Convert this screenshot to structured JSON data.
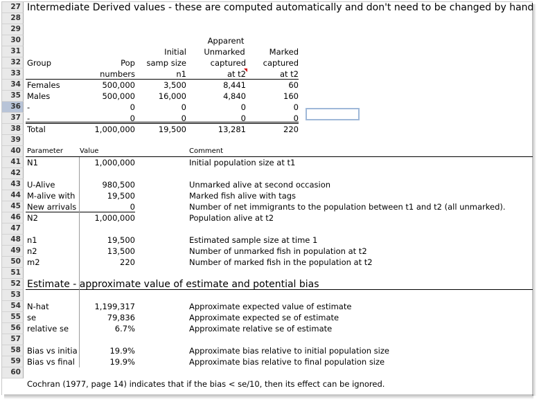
{
  "row_numbers": [
    "27",
    "28",
    "29",
    "30",
    "31",
    "32",
    "33",
    "34",
    "35",
    "36",
    "37",
    "38",
    "39",
    "40",
    "41",
    "42",
    "43",
    "44",
    "45",
    "46",
    "47",
    "48",
    "49",
    "50",
    "51",
    "52",
    "53",
    "54",
    "55",
    "56",
    "57",
    "58",
    "59",
    "60"
  ],
  "title": "Intermediate Derived values - these are computed automatically and don't need to be changed by hand.",
  "table_headers": {
    "r29": {
      "apparent": "Apparent"
    },
    "r30": {
      "initial": "Initial",
      "unmarked": "Unmarked",
      "marked": "Marked"
    },
    "r31": {
      "group": "Group",
      "pop": "Pop",
      "samp": "samp size",
      "captured1": "captured",
      "captured2": "captured"
    },
    "r32": {
      "numbers": "numbers",
      "n1": "n1",
      "at_t2_a": "at t2",
      "at_t2_b": "at t2"
    }
  },
  "table_rows": [
    {
      "group": "Females",
      "pop": "500,000",
      "samp": "3,500",
      "unmarked": "8,441",
      "marked": "60"
    },
    {
      "group": "Males",
      "pop": "500,000",
      "samp": "16,000",
      "unmarked": "4,840",
      "marked": "160"
    },
    {
      "group": "-",
      "pop": "0",
      "samp": "0",
      "unmarked": "0",
      "marked": "0"
    },
    {
      "group": "-",
      "pop": "0",
      "samp": "0",
      "unmarked": "0",
      "marked": "0"
    }
  ],
  "total": {
    "label": "Total",
    "pop": "1,000,000",
    "samp": "19,500",
    "unmarked": "13,281",
    "marked": "220"
  },
  "params_header": {
    "parameter": "Parameter",
    "value": "Value",
    "comment": "Comment"
  },
  "params": {
    "N1": {
      "name": "N1",
      "value": "1,000,000",
      "comment": "Initial population size at t1"
    },
    "UAlive": {
      "name": "U-Alive",
      "value": "980,500",
      "comment": "Unmarked alive at second occasion"
    },
    "MAlive": {
      "name": "M-alive with",
      "value": "19,500",
      "comment": "Marked fish alive with tags"
    },
    "NewArr": {
      "name": "New arrivals",
      "value": "0",
      "comment": "Number of net immigrants to the population between t1 and t2 (all unmarked)."
    },
    "N2": {
      "name": "N2",
      "value": "1,000,000",
      "comment": "Population alive at t2"
    },
    "n1": {
      "name": "n1",
      "value": "19,500",
      "comment": "Estimated sample size at time 1"
    },
    "n2": {
      "name": "n2",
      "value": "13,500",
      "comment": "Number of unmarked fish in population at t2"
    },
    "m2": {
      "name": "m2",
      "value": "220",
      "comment": "Number of marked fish in the population at t2"
    }
  },
  "estimate_title": "Estimate - approximate value of estimate and potential bias",
  "estimates": {
    "nhat": {
      "name": "N-hat",
      "value": "1,199,317",
      "comment": "Approximate expected value of estimate"
    },
    "se": {
      "name": "se",
      "value": "79,836",
      "comment": "Approximate expected se of estimate"
    },
    "relse": {
      "name": "relative se",
      "value": "6.7%",
      "comment": "Approximate relative se of estimate"
    },
    "biasinit": {
      "name": "Bias vs initia",
      "value": "19.9%",
      "comment": "Approximate bias relative to initial population size"
    },
    "biasfinal": {
      "name": "Bias vs final",
      "value": "19.9%",
      "comment": "Approximate bias relative to final population size"
    }
  },
  "footnote": "Cochran (1977, page 14) indicates that if the bias < se/10, then its effect can be ignored.",
  "colors": {
    "selection": "#9fb8d8",
    "header_bg": "#e9e9e9",
    "comment_marker": "#d00000"
  }
}
